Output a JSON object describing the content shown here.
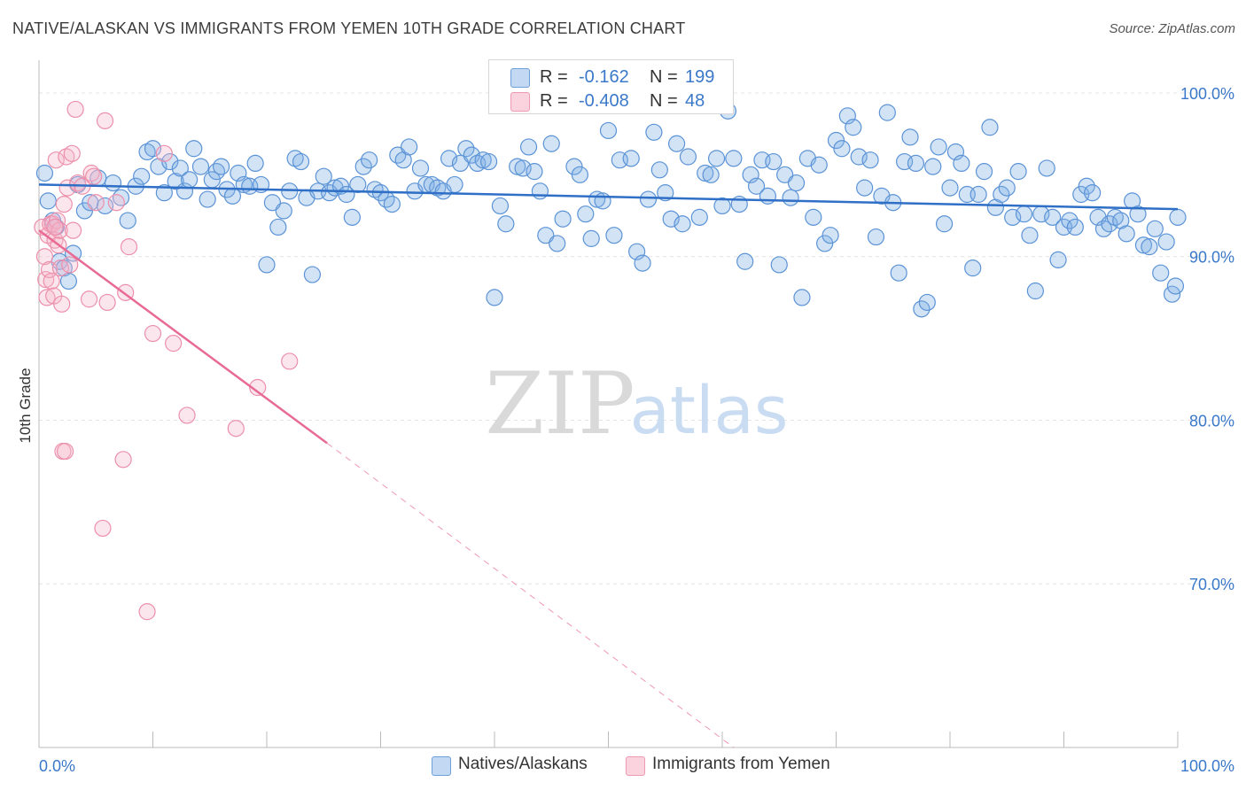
{
  "header": {
    "title": "NATIVE/ALASKAN VS IMMIGRANTS FROM YEMEN 10TH GRADE CORRELATION CHART",
    "source": "Source: ZipAtlas.com"
  },
  "watermark": {
    "zip": "ZIP",
    "atlas": "atlas"
  },
  "stats_legend": {
    "rows": [
      {
        "r_label": "R =",
        "r_value": "-0.162",
        "n_label": "N =",
        "n_value": "199",
        "color": "#a9c8ee"
      },
      {
        "r_label": "R =",
        "r_value": "-0.408",
        "n_label": "N =",
        "n_value": "48",
        "color": "#f6b8cb"
      }
    ]
  },
  "bottom_legend": {
    "items": [
      {
        "label": "Natives/Alaskans",
        "color": "#a9c8ee"
      },
      {
        "label": "Immigrants from Yemen",
        "color": "#f6b8cb"
      }
    ]
  },
  "chart_data": {
    "type": "scatter",
    "title": "NATIVE/ALASKAN VS IMMIGRANTS FROM YEMEN 10TH GRADE CORRELATION CHART",
    "xlabel": "",
    "ylabel": "10th Grade",
    "xlim": [
      0,
      100
    ],
    "ylim": [
      60,
      102
    ],
    "x_tick_labels": [
      "0.0%",
      "100.0%"
    ],
    "y_ticks": [
      70,
      80,
      90,
      100
    ],
    "y_tick_labels": [
      "70.0%",
      "80.0%",
      "90.0%",
      "100.0%"
    ],
    "grid": true,
    "legend_position": "bottom",
    "series": [
      {
        "name": "Natives/Alaskans",
        "color": "#7eaee6",
        "stroke": "#5b93d6",
        "trend": {
          "x": [
            0,
            100
          ],
          "y": [
            94.4,
            92.9
          ],
          "color": "#2f6fc6",
          "dashed_after": null
        },
        "points": [
          [
            0.5,
            95.1
          ],
          [
            0.8,
            93.4
          ],
          [
            1.2,
            92.2
          ],
          [
            1.5,
            91.8
          ],
          [
            1.8,
            89.7
          ],
          [
            2.2,
            89.3
          ],
          [
            2.6,
            88.5
          ],
          [
            3.0,
            90.2
          ],
          [
            3.4,
            94.4
          ],
          [
            4.0,
            92.8
          ],
          [
            4.5,
            93.3
          ],
          [
            5.2,
            94.8
          ],
          [
            5.8,
            93.1
          ],
          [
            6.5,
            94.5
          ],
          [
            7.2,
            93.6
          ],
          [
            7.8,
            92.2
          ],
          [
            8.5,
            94.3
          ],
          [
            9.0,
            94.9
          ],
          [
            9.5,
            96.4
          ],
          [
            10.0,
            96.6
          ],
          [
            10.5,
            95.5
          ],
          [
            11.0,
            93.9
          ],
          [
            11.5,
            95.8
          ],
          [
            12.0,
            94.6
          ],
          [
            12.4,
            95.4
          ],
          [
            12.8,
            94.0
          ],
          [
            13.2,
            94.7
          ],
          [
            13.6,
            96.6
          ],
          [
            14.2,
            95.5
          ],
          [
            14.8,
            93.5
          ],
          [
            15.2,
            94.7
          ],
          [
            15.6,
            95.2
          ],
          [
            16.0,
            95.5
          ],
          [
            16.5,
            94.1
          ],
          [
            17.0,
            93.7
          ],
          [
            17.5,
            95.1
          ],
          [
            18.0,
            94.4
          ],
          [
            18.5,
            94.3
          ],
          [
            19.0,
            95.7
          ],
          [
            19.5,
            94.4
          ],
          [
            20.0,
            89.5
          ],
          [
            20.5,
            93.3
          ],
          [
            21.0,
            91.8
          ],
          [
            21.5,
            92.8
          ],
          [
            22.0,
            94.0
          ],
          [
            22.5,
            96.0
          ],
          [
            23.0,
            95.8
          ],
          [
            23.5,
            93.6
          ],
          [
            24.0,
            88.9
          ],
          [
            24.5,
            94.0
          ],
          [
            25.0,
            94.9
          ],
          [
            25.5,
            93.9
          ],
          [
            26.0,
            94.2
          ],
          [
            26.5,
            94.3
          ],
          [
            27.0,
            93.8
          ],
          [
            27.5,
            92.4
          ],
          [
            28.0,
            94.4
          ],
          [
            28.5,
            95.5
          ],
          [
            29.0,
            95.9
          ],
          [
            29.5,
            94.1
          ],
          [
            30.0,
            93.9
          ],
          [
            30.5,
            93.5
          ],
          [
            31.0,
            93.2
          ],
          [
            31.5,
            96.2
          ],
          [
            32.0,
            95.9
          ],
          [
            32.5,
            96.7
          ],
          [
            33.0,
            94.0
          ],
          [
            33.5,
            95.4
          ],
          [
            34.0,
            94.4
          ],
          [
            34.5,
            94.4
          ],
          [
            35.0,
            94.2
          ],
          [
            35.5,
            94.0
          ],
          [
            36.0,
            96.0
          ],
          [
            36.5,
            94.4
          ],
          [
            37.0,
            95.7
          ],
          [
            37.5,
            96.6
          ],
          [
            38.0,
            96.2
          ],
          [
            38.5,
            95.7
          ],
          [
            39.0,
            95.9
          ],
          [
            39.5,
            95.8
          ],
          [
            40.0,
            87.5
          ],
          [
            40.5,
            93.1
          ],
          [
            41.0,
            92.0
          ],
          [
            42.0,
            95.5
          ],
          [
            42.5,
            95.4
          ],
          [
            43.0,
            96.7
          ],
          [
            43.5,
            95.2
          ],
          [
            44.0,
            94.0
          ],
          [
            44.5,
            91.3
          ],
          [
            45.0,
            96.9
          ],
          [
            45.5,
            90.8
          ],
          [
            46.0,
            92.3
          ],
          [
            47.0,
            95.5
          ],
          [
            47.5,
            95.0
          ],
          [
            48.0,
            92.6
          ],
          [
            48.5,
            91.1
          ],
          [
            49.0,
            93.5
          ],
          [
            49.5,
            93.4
          ],
          [
            50.0,
            97.7
          ],
          [
            50.5,
            91.3
          ],
          [
            51.0,
            95.9
          ],
          [
            52.0,
            96.0
          ],
          [
            52.5,
            90.3
          ],
          [
            53.0,
            89.6
          ],
          [
            53.5,
            93.5
          ],
          [
            54.0,
            97.6
          ],
          [
            54.5,
            95.3
          ],
          [
            55.0,
            93.9
          ],
          [
            55.5,
            92.3
          ],
          [
            56.0,
            96.9
          ],
          [
            56.5,
            92.0
          ],
          [
            57.0,
            96.1
          ],
          [
            58.0,
            92.4
          ],
          [
            58.5,
            95.1
          ],
          [
            59.0,
            95.0
          ],
          [
            59.5,
            96.0
          ],
          [
            60.0,
            93.1
          ],
          [
            60.5,
            98.9
          ],
          [
            61.0,
            96.0
          ],
          [
            61.5,
            93.2
          ],
          [
            62.0,
            89.7
          ],
          [
            62.5,
            95.0
          ],
          [
            63.0,
            94.3
          ],
          [
            63.5,
            95.9
          ],
          [
            64.0,
            93.7
          ],
          [
            64.5,
            95.8
          ],
          [
            65.0,
            89.5
          ],
          [
            65.5,
            95.0
          ],
          [
            66.0,
            93.6
          ],
          [
            66.5,
            94.5
          ],
          [
            67.0,
            87.5
          ],
          [
            67.5,
            96.0
          ],
          [
            68.0,
            92.4
          ],
          [
            68.5,
            95.6
          ],
          [
            69.0,
            90.8
          ],
          [
            69.5,
            91.3
          ],
          [
            70.0,
            97.1
          ],
          [
            70.5,
            96.6
          ],
          [
            71.0,
            98.6
          ],
          [
            71.5,
            97.9
          ],
          [
            72.0,
            96.1
          ],
          [
            72.5,
            94.2
          ],
          [
            73.0,
            95.9
          ],
          [
            73.5,
            91.2
          ],
          [
            74.0,
            93.7
          ],
          [
            74.5,
            98.8
          ],
          [
            75.0,
            93.3
          ],
          [
            75.5,
            89.0
          ],
          [
            76.0,
            95.8
          ],
          [
            76.5,
            97.3
          ],
          [
            77.0,
            95.7
          ],
          [
            77.5,
            86.8
          ],
          [
            78.0,
            87.2
          ],
          [
            78.5,
            95.5
          ],
          [
            79.0,
            96.7
          ],
          [
            79.5,
            92.0
          ],
          [
            80.0,
            94.2
          ],
          [
            80.5,
            96.4
          ],
          [
            81.0,
            95.7
          ],
          [
            81.5,
            93.8
          ],
          [
            82.0,
            89.3
          ],
          [
            82.5,
            93.8
          ],
          [
            83.0,
            95.2
          ],
          [
            83.5,
            97.9
          ],
          [
            84.0,
            93.0
          ],
          [
            84.5,
            93.8
          ],
          [
            85.0,
            94.2
          ],
          [
            85.5,
            92.4
          ],
          [
            86.0,
            95.2
          ],
          [
            86.5,
            92.6
          ],
          [
            87.0,
            91.3
          ],
          [
            87.5,
            87.9
          ],
          [
            88.0,
            92.6
          ],
          [
            88.5,
            95.4
          ],
          [
            89.0,
            92.4
          ],
          [
            89.5,
            89.8
          ],
          [
            90.0,
            91.8
          ],
          [
            90.5,
            92.2
          ],
          [
            91.0,
            91.8
          ],
          [
            91.5,
            93.8
          ],
          [
            92.0,
            94.3
          ],
          [
            92.5,
            93.9
          ],
          [
            93.0,
            92.4
          ],
          [
            93.5,
            91.7
          ],
          [
            94.0,
            92.0
          ],
          [
            94.5,
            92.4
          ],
          [
            95.0,
            92.2
          ],
          [
            95.5,
            91.4
          ],
          [
            96.0,
            93.4
          ],
          [
            96.5,
            92.6
          ],
          [
            97.0,
            90.7
          ],
          [
            97.5,
            90.6
          ],
          [
            98.0,
            91.7
          ],
          [
            98.5,
            89.0
          ],
          [
            99.0,
            90.9
          ],
          [
            99.5,
            87.7
          ],
          [
            99.8,
            88.2
          ],
          [
            100.0,
            92.4
          ]
        ]
      },
      {
        "name": "Immigrants from Yemen",
        "color": "#f6b8cb",
        "stroke": "#ec8fab",
        "trend": {
          "x": [
            0,
            25.3
          ],
          "y": [
            91.6,
            78.6
          ],
          "dash_x": [
            25.3,
            61.0
          ],
          "dash_y": [
            78.6,
            60.0
          ],
          "color": "#e86b95"
        },
        "points": [
          [
            0.3,
            91.8
          ],
          [
            0.5,
            90.0
          ],
          [
            0.6,
            88.6
          ],
          [
            0.7,
            87.5
          ],
          [
            0.8,
            91.3
          ],
          [
            0.9,
            89.2
          ],
          [
            1.0,
            92.0
          ],
          [
            1.1,
            88.5
          ],
          [
            1.2,
            92.0
          ],
          [
            1.3,
            87.6
          ],
          [
            1.4,
            91.0
          ],
          [
            1.5,
            95.9
          ],
          [
            1.6,
            92.2
          ],
          [
            1.7,
            90.7
          ],
          [
            1.8,
            91.6
          ],
          [
            1.9,
            89.3
          ],
          [
            2.0,
            87.1
          ],
          [
            2.1,
            78.1
          ],
          [
            2.2,
            93.2
          ],
          [
            2.3,
            78.1
          ],
          [
            2.4,
            96.1
          ],
          [
            2.5,
            94.2
          ],
          [
            2.7,
            89.5
          ],
          [
            2.9,
            96.3
          ],
          [
            3.0,
            91.6
          ],
          [
            3.2,
            99.0
          ],
          [
            3.4,
            94.5
          ],
          [
            3.8,
            94.3
          ],
          [
            4.4,
            87.4
          ],
          [
            4.6,
            95.1
          ],
          [
            4.8,
            94.9
          ],
          [
            5.0,
            93.3
          ],
          [
            5.6,
            73.4
          ],
          [
            5.8,
            98.3
          ],
          [
            6.0,
            87.2
          ],
          [
            6.8,
            93.3
          ],
          [
            7.4,
            77.6
          ],
          [
            7.6,
            87.8
          ],
          [
            7.9,
            90.6
          ],
          [
            9.5,
            68.3
          ],
          [
            10.0,
            85.3
          ],
          [
            11.0,
            96.3
          ],
          [
            11.8,
            84.7
          ],
          [
            13.0,
            80.3
          ],
          [
            17.3,
            79.5
          ],
          [
            19.2,
            82.0
          ],
          [
            22.0,
            83.6
          ],
          [
            1.4,
            91.8
          ]
        ]
      }
    ]
  }
}
